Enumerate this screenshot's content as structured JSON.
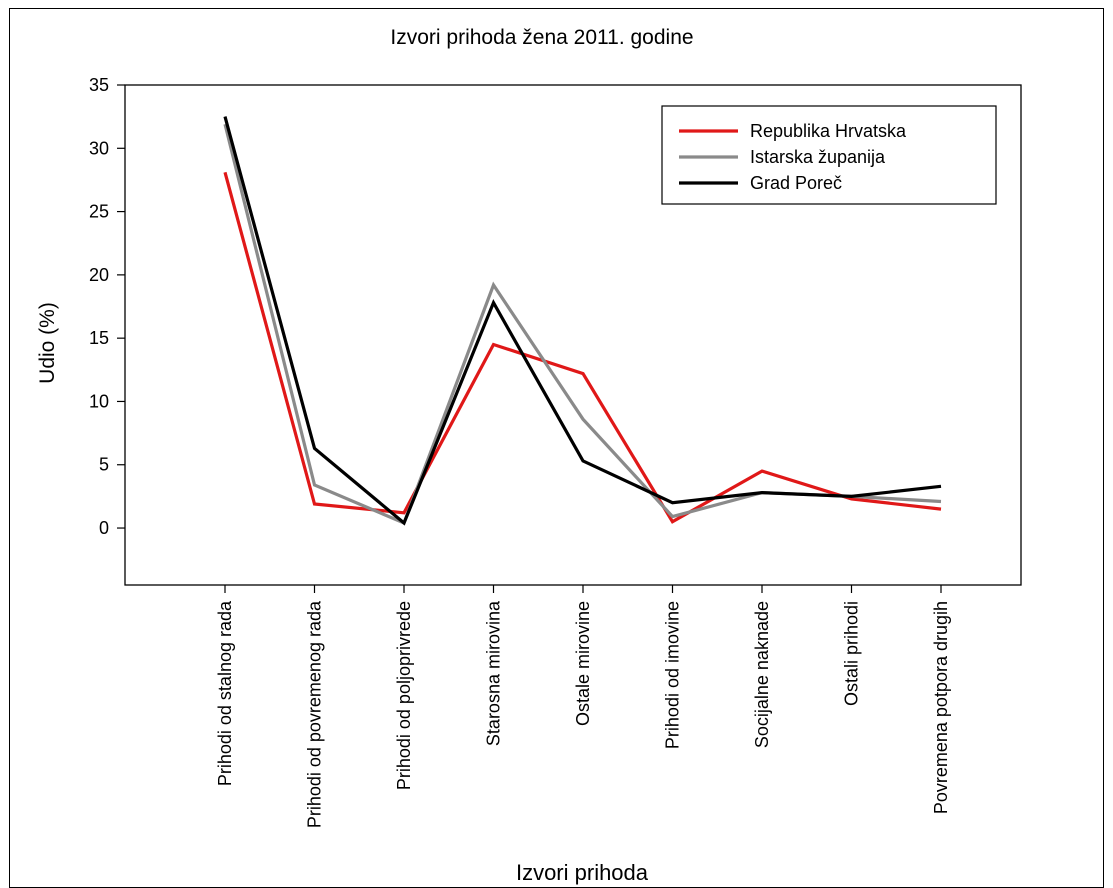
{
  "chart_data": {
    "type": "line",
    "title": "Izvori prihoda žena 2011. godine",
    "xlabel": "Izvori prihoda",
    "ylabel": "Udio (%)",
    "ylim": [
      -4.5,
      35
    ],
    "yticks": [
      0,
      5,
      10,
      15,
      20,
      25,
      30,
      35
    ],
    "categories": [
      "Prihodi od stalnog rada",
      "Prihodi od povremenog rada",
      "Prihodi od poljoprivrede",
      "Starosna mirovina",
      "Ostale mirovine",
      "Prihodi od imovine",
      "Socijalne naknade",
      "Ostali prihodi",
      "Povremena potpora drugih"
    ],
    "series": [
      {
        "name": "Republika Hrvatska",
        "color": "#e01818",
        "values": [
          28.1,
          1.9,
          1.2,
          14.5,
          12.2,
          0.5,
          4.5,
          2.3,
          1.5
        ]
      },
      {
        "name": "Istarska županija",
        "color": "#8a8a8a",
        "values": [
          31.9,
          3.4,
          0.4,
          19.2,
          8.6,
          0.9,
          2.8,
          2.5,
          2.1
        ]
      },
      {
        "name": "Grad Poreč",
        "color": "#000000",
        "values": [
          32.5,
          6.3,
          0.4,
          17.8,
          5.3,
          2.0,
          2.8,
          2.5,
          3.3
        ]
      }
    ],
    "legend_position": "top-right",
    "grid": false
  }
}
